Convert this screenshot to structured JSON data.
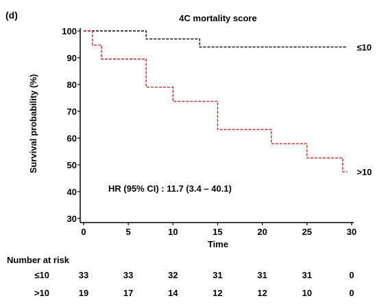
{
  "panel_label": "(d)",
  "chart_data": {
    "type": "line",
    "title": "4C mortality score",
    "xlabel": "Time",
    "ylabel": "Survival probability (%)",
    "xlim": [
      0,
      30
    ],
    "ylim": [
      30,
      100
    ],
    "x_ticks": [
      "0",
      "5",
      "10",
      "15",
      "20",
      "25",
      "30"
    ],
    "y_ticks": [
      "30",
      "40",
      "50",
      "60",
      "70",
      "80",
      "90",
      "100"
    ],
    "grid": false,
    "step": true,
    "series": [
      {
        "name": "≤10",
        "color": "#000000",
        "dash": true,
        "points": [
          [
            0,
            100
          ],
          [
            7,
            100
          ],
          [
            7,
            97
          ],
          [
            13,
            97
          ],
          [
            13,
            94
          ],
          [
            29.5,
            94
          ]
        ]
      },
      {
        "name": ">10",
        "color": "#e8191a",
        "dash": true,
        "points": [
          [
            0,
            100
          ],
          [
            1,
            100
          ],
          [
            1,
            94.7
          ],
          [
            2,
            94.7
          ],
          [
            2,
            89.5
          ],
          [
            7,
            89.5
          ],
          [
            7,
            79
          ],
          [
            10,
            79
          ],
          [
            10,
            73.7
          ],
          [
            15,
            73.7
          ],
          [
            15,
            63.2
          ],
          [
            21,
            63.2
          ],
          [
            21,
            57.9
          ],
          [
            25,
            57.9
          ],
          [
            25,
            52.6
          ],
          [
            29,
            52.6
          ],
          [
            29,
            47.4
          ],
          [
            29.5,
            47.4
          ]
        ]
      }
    ],
    "annotation": "HR (95% CI) : 11.7 (3.4 – 40.1)"
  },
  "risk_table": {
    "title": "Number at risk",
    "rows": [
      {
        "label": "≤10",
        "values": [
          "33",
          "33",
          "32",
          "31",
          "31",
          "31",
          "0"
        ]
      },
      {
        "label": ">10",
        "values": [
          "19",
          "17",
          "14",
          "12",
          "12",
          "10",
          "0"
        ]
      }
    ]
  }
}
